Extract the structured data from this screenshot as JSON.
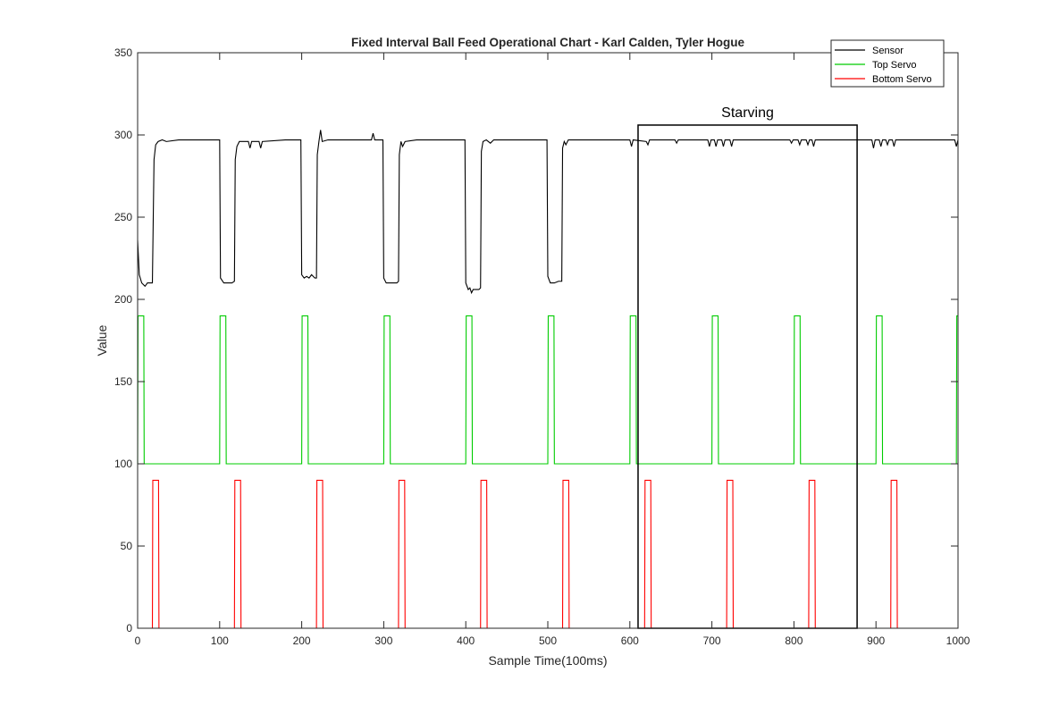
{
  "chart_data": {
    "type": "line",
    "title": "Fixed Interval Ball Feed Operational Chart - Karl Calden, Tyler Hogue",
    "xlabel": "Sample Time(100ms)",
    "ylabel": "Value",
    "xlim": [
      0,
      1000
    ],
    "ylim": [
      0,
      350
    ],
    "xticks": [
      0,
      100,
      200,
      300,
      400,
      500,
      600,
      700,
      800,
      900,
      1000
    ],
    "yticks": [
      0,
      50,
      100,
      150,
      200,
      250,
      300,
      350
    ],
    "grid": false,
    "legend_position": "top-right",
    "series": [
      {
        "name": "Sensor",
        "color": "#000000",
        "points": [
          [
            0,
            236
          ],
          [
            2,
            215
          ],
          [
            5,
            210
          ],
          [
            9,
            208
          ],
          [
            12,
            210
          ],
          [
            18,
            210
          ],
          [
            20,
            285
          ],
          [
            22,
            294
          ],
          [
            25,
            296
          ],
          [
            30,
            297
          ],
          [
            35,
            296
          ],
          [
            50,
            297
          ],
          [
            100,
            297
          ],
          [
            101,
            213
          ],
          [
            105,
            210
          ],
          [
            115,
            210
          ],
          [
            118,
            211
          ],
          [
            119,
            285
          ],
          [
            121,
            293
          ],
          [
            124,
            296
          ],
          [
            135,
            296
          ],
          [
            137,
            292
          ],
          [
            139,
            296
          ],
          [
            148,
            296
          ],
          [
            150,
            292
          ],
          [
            152,
            296
          ],
          [
            180,
            297
          ],
          [
            199,
            297
          ],
          [
            200,
            215
          ],
          [
            203,
            213
          ],
          [
            206,
            214
          ],
          [
            209,
            213
          ],
          [
            212,
            215
          ],
          [
            216,
            213
          ],
          [
            218,
            213
          ],
          [
            219,
            288
          ],
          [
            221,
            296
          ],
          [
            223,
            303
          ],
          [
            225,
            296
          ],
          [
            232,
            297
          ],
          [
            285,
            297
          ],
          [
            287,
            301
          ],
          [
            289,
            297
          ],
          [
            299,
            297
          ],
          [
            300,
            213
          ],
          [
            303,
            210
          ],
          [
            310,
            210
          ],
          [
            316,
            210
          ],
          [
            318,
            211
          ],
          [
            319,
            288
          ],
          [
            321,
            296
          ],
          [
            323,
            293
          ],
          [
            326,
            296
          ],
          [
            340,
            297
          ],
          [
            399,
            297
          ],
          [
            400,
            210
          ],
          [
            403,
            206
          ],
          [
            405,
            207
          ],
          [
            407,
            204
          ],
          [
            409,
            206
          ],
          [
            412,
            206
          ],
          [
            416,
            206
          ],
          [
            418,
            207
          ],
          [
            419,
            290
          ],
          [
            421,
            296
          ],
          [
            425,
            297
          ],
          [
            430,
            295
          ],
          [
            434,
            297
          ],
          [
            499,
            297
          ],
          [
            500,
            214
          ],
          [
            503,
            210
          ],
          [
            508,
            210
          ],
          [
            513,
            211
          ],
          [
            517,
            211
          ],
          [
            518,
            292
          ],
          [
            520,
            296
          ],
          [
            522,
            294
          ],
          [
            525,
            297
          ],
          [
            600,
            297
          ],
          [
            602,
            293
          ],
          [
            604,
            297
          ],
          [
            620,
            296
          ],
          [
            622,
            294
          ],
          [
            624,
            297
          ],
          [
            655,
            297
          ],
          [
            657,
            295
          ],
          [
            659,
            297
          ],
          [
            695,
            297
          ],
          [
            697,
            293
          ],
          [
            699,
            297
          ],
          [
            703,
            297
          ],
          [
            705,
            293
          ],
          [
            707,
            297
          ],
          [
            712,
            297
          ],
          [
            714,
            293
          ],
          [
            716,
            297
          ],
          [
            722,
            297
          ],
          [
            724,
            293
          ],
          [
            726,
            297
          ],
          [
            795,
            297
          ],
          [
            797,
            295
          ],
          [
            799,
            297
          ],
          [
            805,
            297
          ],
          [
            807,
            294
          ],
          [
            809,
            297
          ],
          [
            815,
            297
          ],
          [
            817,
            294
          ],
          [
            819,
            297
          ],
          [
            822,
            297
          ],
          [
            824,
            293
          ],
          [
            826,
            297
          ],
          [
            895,
            297
          ],
          [
            897,
            292
          ],
          [
            899,
            297
          ],
          [
            904,
            297
          ],
          [
            906,
            293
          ],
          [
            908,
            297
          ],
          [
            912,
            297
          ],
          [
            914,
            294
          ],
          [
            916,
            297
          ],
          [
            920,
            297
          ],
          [
            922,
            293
          ],
          [
            924,
            297
          ],
          [
            996,
            297
          ],
          [
            998,
            293
          ],
          [
            1000,
            297
          ]
        ]
      },
      {
        "name": "Top Servo",
        "color": "#00cc00",
        "period": 100,
        "pulse_starts": [
          0,
          100,
          200,
          300,
          400,
          500,
          600,
          700,
          800,
          900
        ],
        "pulse_width": 8,
        "low": 100,
        "high": 190
      },
      {
        "name": "Bottom Servo",
        "color": "#ff0000",
        "pulse_starts": [
          18,
          118,
          218,
          318,
          418,
          518,
          618,
          718,
          818,
          918
        ],
        "pulse_width": 8,
        "low": 0,
        "high": 90
      }
    ],
    "annotations": [
      {
        "text": "Starving",
        "x_start": 610,
        "x_end": 877,
        "y_bottom": 0,
        "y_top": 306
      }
    ]
  }
}
